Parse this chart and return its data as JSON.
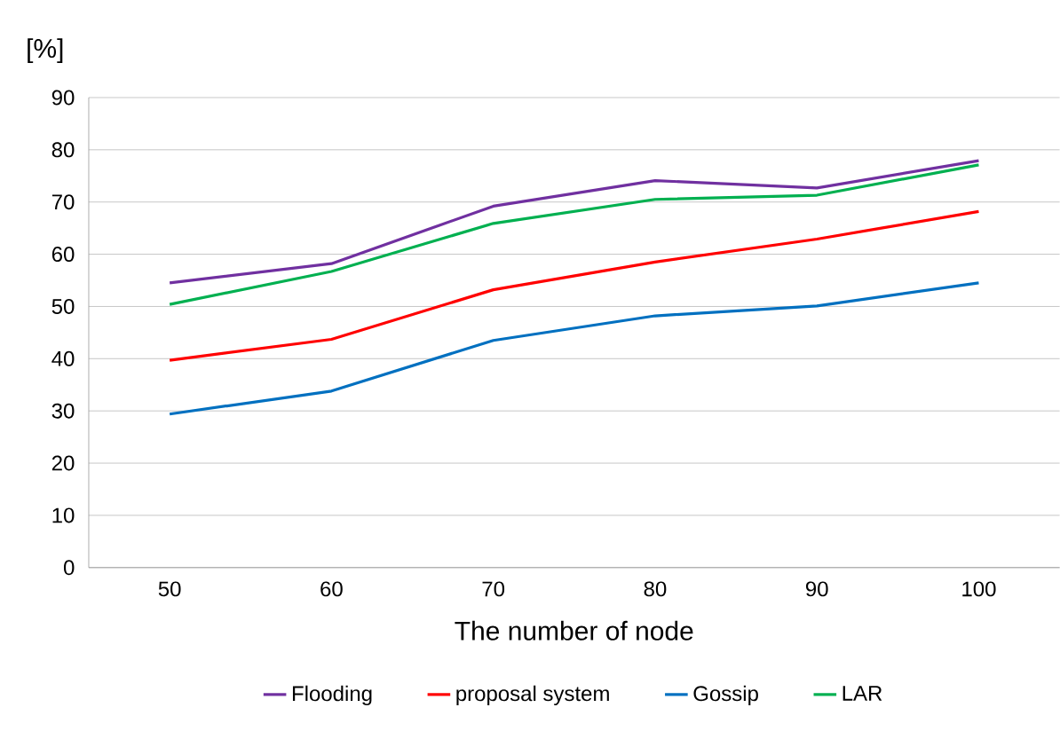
{
  "chart_data": {
    "type": "line",
    "xlabel": "The number of node",
    "ylabel": "[%]",
    "categories": [
      "50",
      "60",
      "70",
      "80",
      "90",
      "100"
    ],
    "ylim": [
      0,
      90
    ],
    "yticks": [
      0,
      10,
      20,
      30,
      40,
      50,
      60,
      70,
      80,
      90
    ],
    "grid": "y",
    "legend": "bottom",
    "marker": "none",
    "line_style": "solid",
    "series": [
      {
        "name": "Flooding",
        "color": "#7030a0",
        "values": [
          54.5,
          58.2,
          69.2,
          74.1,
          72.7,
          77.9
        ]
      },
      {
        "name": "proposal system",
        "color": "#ff0000",
        "values": [
          39.7,
          43.7,
          53.2,
          58.5,
          62.9,
          68.2
        ]
      },
      {
        "name": "Gossip",
        "color": "#0070c0",
        "values": [
          29.4,
          33.8,
          43.5,
          48.2,
          50.1,
          54.5
        ]
      },
      {
        "name": "LAR",
        "color": "#00b050",
        "values": [
          50.4,
          56.7,
          65.9,
          70.5,
          71.3,
          77.1
        ]
      }
    ]
  }
}
